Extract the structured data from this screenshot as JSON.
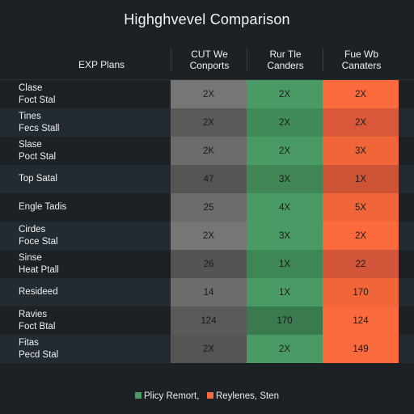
{
  "title": "Highghvevel Comparison",
  "header": {
    "row_label": "EXP Plans",
    "columns": [
      {
        "line1": "CUT We",
        "line2": "Conports"
      },
      {
        "line1": "Rur Tle",
        "line2": "Canders"
      },
      {
        "line1": "Fue Wb",
        "line2": "Canaters"
      }
    ]
  },
  "rows": [
    {
      "line1": "Clase",
      "line2": "Foct Stal",
      "values": [
        "2X",
        "2X",
        "2X"
      ],
      "colors": [
        "#767676",
        "#4a9a65",
        "#fa6a3c"
      ]
    },
    {
      "line1": "Tines",
      "line2": "Fecs Stall",
      "values": [
        "2X",
        "2X",
        "2X"
      ],
      "colors": [
        "#5a5a5a",
        "#418a5a",
        "#d9583a"
      ]
    },
    {
      "line1": "Slase",
      "line2": "Poct Stal",
      "values": [
        "2K",
        "2X",
        "3X"
      ],
      "colors": [
        "#6c6c6c",
        "#4a9a65",
        "#f06638"
      ]
    },
    {
      "line1": "Top Satal",
      "line2": "",
      "values": [
        "47",
        "3X",
        "1X"
      ],
      "colors": [
        "#555555",
        "#408656",
        "#cd5335"
      ]
    },
    {
      "line1": "Engle Tadis",
      "line2": "",
      "values": [
        "25",
        "4X",
        "5X"
      ],
      "colors": [
        "#6c6c6c",
        "#4a9a65",
        "#f06638"
      ]
    },
    {
      "line1": "Cirdes",
      "line2": "Foce Stal",
      "values": [
        "2X",
        "3X",
        "2X"
      ],
      "colors": [
        "#767676",
        "#4a9a65",
        "#fa6a3c"
      ]
    },
    {
      "line1": "Sinse",
      "line2": "Heat Ptall",
      "values": [
        "26",
        "1X",
        "22"
      ],
      "colors": [
        "#545454",
        "#3f8656",
        "#d3553a"
      ]
    },
    {
      "line1": "Resideed",
      "line2": "",
      "values": [
        "14",
        "1X",
        "170"
      ],
      "colors": [
        "#6c6c6c",
        "#4a9a65",
        "#f06638"
      ]
    },
    {
      "line1": "Ravies",
      "line2": "Foct Btal",
      "values": [
        "124",
        "170",
        "124"
      ],
      "colors": [
        "#5a5a5a",
        "#3a7a4f",
        "#fa6a3c"
      ]
    },
    {
      "line1": "Fitas",
      "line2": "Pecd Stal",
      "values": [
        "2X",
        "2X",
        "149"
      ],
      "colors": [
        "#555555",
        "#4a9a65",
        "#fa6a3c"
      ]
    }
  ],
  "legend": [
    {
      "label": "Plicy Remort,",
      "color": "#4a9a65"
    },
    {
      "label": "Reylenes, Sten",
      "color": "#fa6a3c"
    }
  ]
}
